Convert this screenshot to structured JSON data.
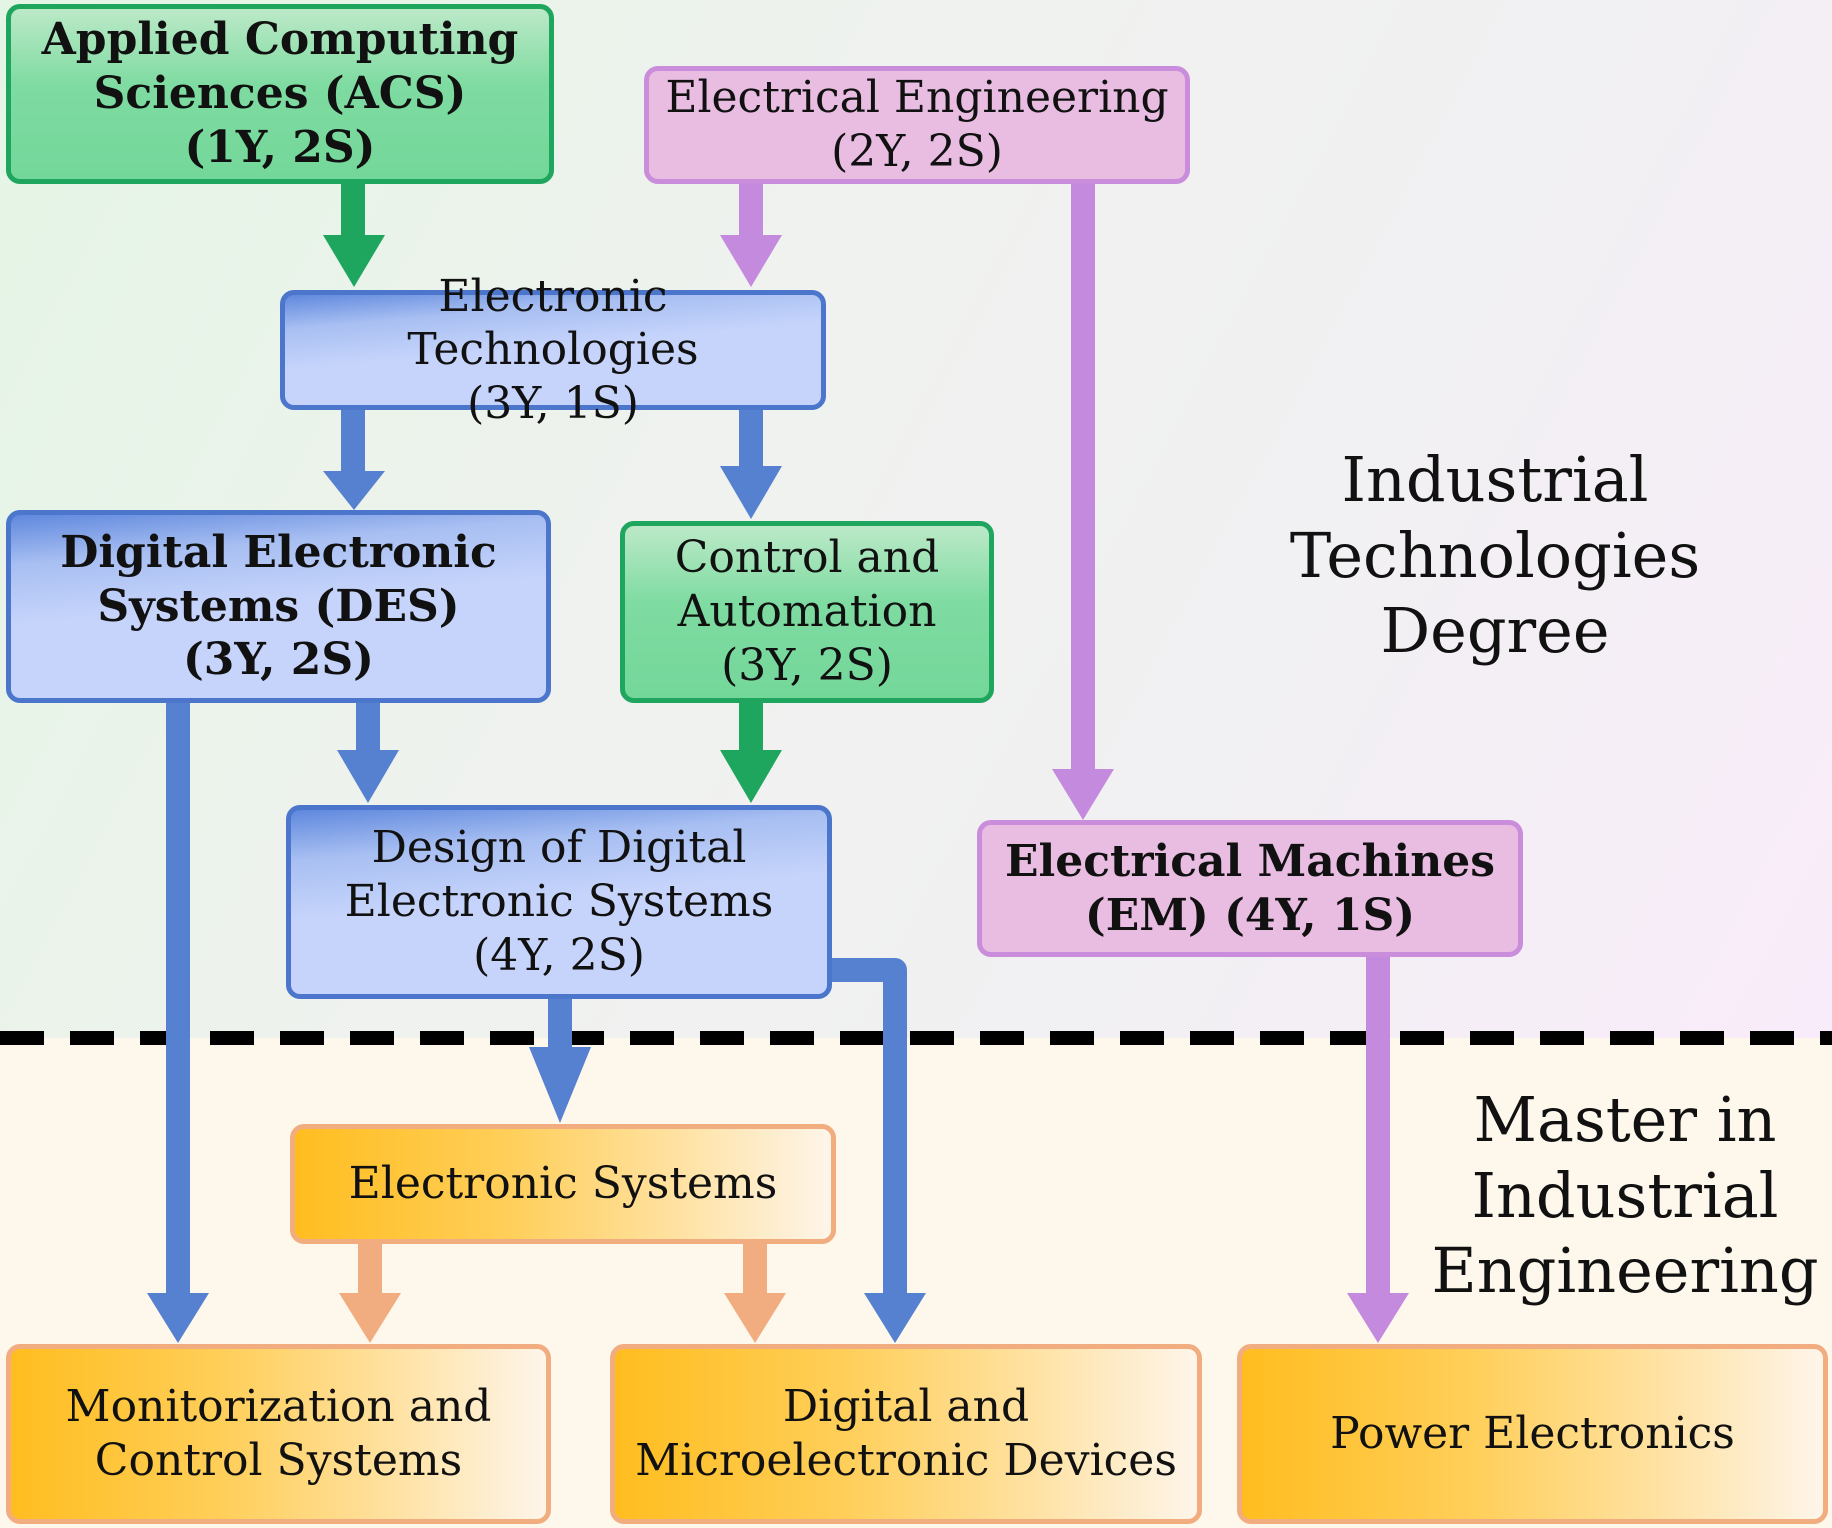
{
  "colors": {
    "green_arrow": "#1ea65e",
    "violet_arrow": "#c48ade",
    "blue_arrow": "#5680d0",
    "orange_arrow": "#f1ad80",
    "divider": "#000000"
  },
  "regions": {
    "top_label": "Industrial\nTechnologies Degree",
    "bottom_label": "Master in\nIndustrial\nEngineering"
  },
  "nodes": {
    "acs": "Applied Computing\nSciences (ACS)\n(1Y, 2S)",
    "ee": "Electrical Engineering\n(2Y, 2S)",
    "et": "Electronic Technologies\n(3Y, 1S)",
    "des": "Digital Electronic\nSystems (DES)\n(3Y, 2S)",
    "ca": "Control and\nAutomation\n(3Y, 2S)",
    "ddes": "Design of Digital\nElectronic Systems\n(4Y, 2S)",
    "em": "Electrical Machines\n(EM)    (4Y, 1S)",
    "es": "Electronic Systems",
    "mcs": "Monitorization and\nControl Systems",
    "dmd": "Digital and\nMicroelectronic Devices",
    "pe": "Power Electronics"
  }
}
